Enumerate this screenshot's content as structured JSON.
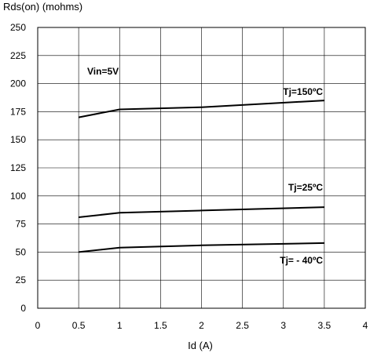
{
  "chart_data": {
    "type": "line",
    "title": "",
    "xlabel": "Id (A)",
    "ylabel": "Rds(on) (mohms)",
    "xlim": [
      0,
      4
    ],
    "ylim": [
      0,
      250
    ],
    "xticks": [
      "0",
      "0.5",
      "1",
      "1.5",
      "2",
      "2.5",
      "3",
      "3.5",
      "4"
    ],
    "yticks": [
      "0",
      "25",
      "50",
      "75",
      "100",
      "125",
      "150",
      "175",
      "200",
      "225",
      "250"
    ],
    "grid": true,
    "annotations": [
      {
        "text": "Vin=5V"
      }
    ],
    "series": [
      {
        "name": "Tj=150ºC",
        "x": [
          0.5,
          1,
          2,
          3.5
        ],
        "y": [
          170,
          177,
          179,
          185
        ]
      },
      {
        "name": "Tj=25ºC",
        "x": [
          0.5,
          1,
          2,
          3.5
        ],
        "y": [
          81,
          85,
          87,
          90
        ]
      },
      {
        "name": "Tj= - 40ºC",
        "x": [
          0.5,
          1,
          2,
          3.5
        ],
        "y": [
          50,
          54,
          56,
          58
        ]
      }
    ],
    "colors": {
      "line": "#000000",
      "grid": "#000000",
      "background": "#ffffff"
    }
  }
}
